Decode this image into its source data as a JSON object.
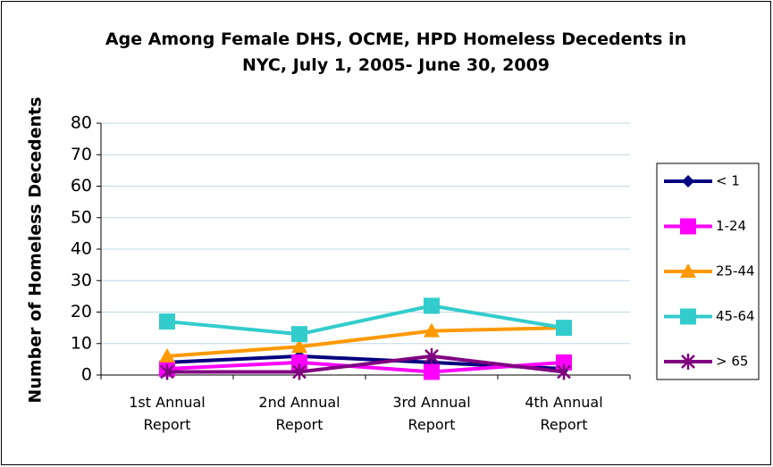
{
  "chart_data": {
    "type": "line",
    "title": "Age Among Female DHS, OCME, HPD Homeless Decedents in NYC, July 1, 2005- June 30, 2009",
    "y_label": "Number of Homeless Decedents",
    "categories": [
      "1st Annual Report",
      "2nd Annual Report",
      "3rd Annual Report",
      "4th Annual Report"
    ],
    "series": [
      {
        "name": "< 1",
        "color": "#000080",
        "marker": "diamond",
        "values": [
          4,
          6,
          4,
          2
        ]
      },
      {
        "name": "1-24",
        "color": "#ff00ff",
        "marker": "square",
        "values": [
          2,
          4,
          1,
          4
        ]
      },
      {
        "name": "25-44",
        "color": "#ff9900",
        "marker": "triangle",
        "values": [
          6,
          9,
          14,
          15
        ]
      },
      {
        "name": "45-64",
        "color": "#33cccc",
        "marker": "square",
        "values": [
          17,
          13,
          22,
          15
        ]
      },
      {
        "name": "> 65",
        "color": "#800080",
        "marker": "asterisk",
        "values": [
          1,
          1,
          6,
          1
        ]
      }
    ],
    "ylim": [
      0,
      80
    ],
    "yticks": [
      0,
      10,
      20,
      30,
      40,
      50,
      60,
      70,
      80
    ],
    "grid": true,
    "legend": "right"
  }
}
